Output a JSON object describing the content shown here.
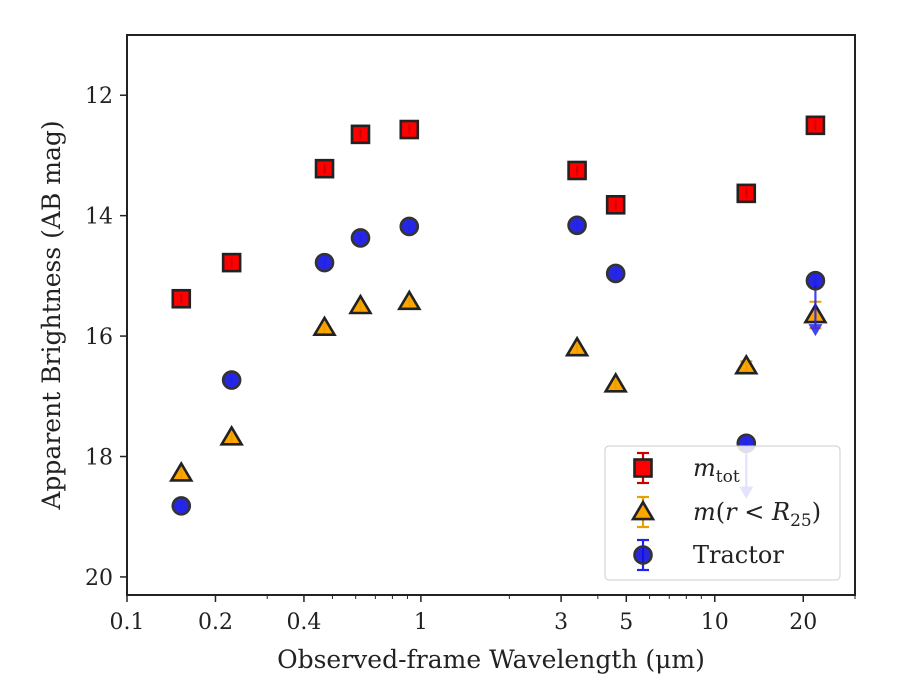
{
  "chart_data": {
    "type": "scatter",
    "title": "",
    "xlabel": "Observed-frame Wavelength (μm)",
    "ylabel": "Apparent Brightness (AB mag)",
    "xscale": "log",
    "xlim": [
      0.1,
      30
    ],
    "ylim": [
      20.3,
      11.0
    ],
    "y_inverted": true,
    "xticks": [
      {
        "value": 0.1,
        "label": "0.1"
      },
      {
        "value": 0.2,
        "label": "0.2"
      },
      {
        "value": 0.4,
        "label": "0.4"
      },
      {
        "value": 1,
        "label": "1"
      },
      {
        "value": 3,
        "label": "3"
      },
      {
        "value": 5,
        "label": "5"
      },
      {
        "value": 10,
        "label": "10"
      },
      {
        "value": 20,
        "label": "20"
      }
    ],
    "yticks": [
      {
        "value": 12,
        "label": "12"
      },
      {
        "value": 14,
        "label": "14"
      },
      {
        "value": 16,
        "label": "16"
      },
      {
        "value": 18,
        "label": "18"
      },
      {
        "value": 20,
        "label": "20"
      }
    ],
    "legend_position": "lower-right",
    "series": [
      {
        "name": "m_tot",
        "marker": "square",
        "color": "#ff0000",
        "edge": "#222222",
        "errcolor": "#cc0000",
        "points": [
          {
            "x": 0.153,
            "y": 15.38
          },
          {
            "x": 0.227,
            "y": 14.78
          },
          {
            "x": 0.47,
            "y": 13.22
          },
          {
            "x": 0.623,
            "y": 12.65
          },
          {
            "x": 0.913,
            "y": 12.57
          },
          {
            "x": 3.4,
            "y": 13.25
          },
          {
            "x": 4.6,
            "y": 13.82
          },
          {
            "x": 12.8,
            "y": 13.63
          },
          {
            "x": 22.0,
            "y": 12.5
          }
        ]
      },
      {
        "name": "m(r<R25)",
        "marker": "triangle",
        "color": "#ffa500",
        "edge": "#222222",
        "errcolor": "#e6a000",
        "points": [
          {
            "x": 0.153,
            "y": 18.28
          },
          {
            "x": 0.227,
            "y": 17.68
          },
          {
            "x": 0.47,
            "y": 15.86
          },
          {
            "x": 0.623,
            "y": 15.5
          },
          {
            "x": 0.913,
            "y": 15.43
          },
          {
            "x": 3.4,
            "y": 16.2
          },
          {
            "x": 4.6,
            "y": 16.8
          },
          {
            "x": 12.8,
            "y": 16.5,
            "err": 0.08
          },
          {
            "x": 22.0,
            "y": 15.65,
            "err": 0.22
          }
        ]
      },
      {
        "name": "Tractor",
        "marker": "circle",
        "color": "#1010e0",
        "edge": "#333333",
        "errcolor": "#2222ee",
        "points": [
          {
            "x": 0.153,
            "y": 18.82
          },
          {
            "x": 0.227,
            "y": 16.73
          },
          {
            "x": 0.47,
            "y": 14.78
          },
          {
            "x": 0.623,
            "y": 14.37
          },
          {
            "x": 0.913,
            "y": 14.18
          },
          {
            "x": 3.4,
            "y": 14.16
          },
          {
            "x": 4.6,
            "y": 14.96
          },
          {
            "x": 12.8,
            "y": 17.78,
            "upper_limit": true,
            "limit_to": 18.65
          },
          {
            "x": 22.0,
            "y": 15.08,
            "upper_limit": true,
            "limit_to": 15.95
          }
        ]
      }
    ]
  }
}
